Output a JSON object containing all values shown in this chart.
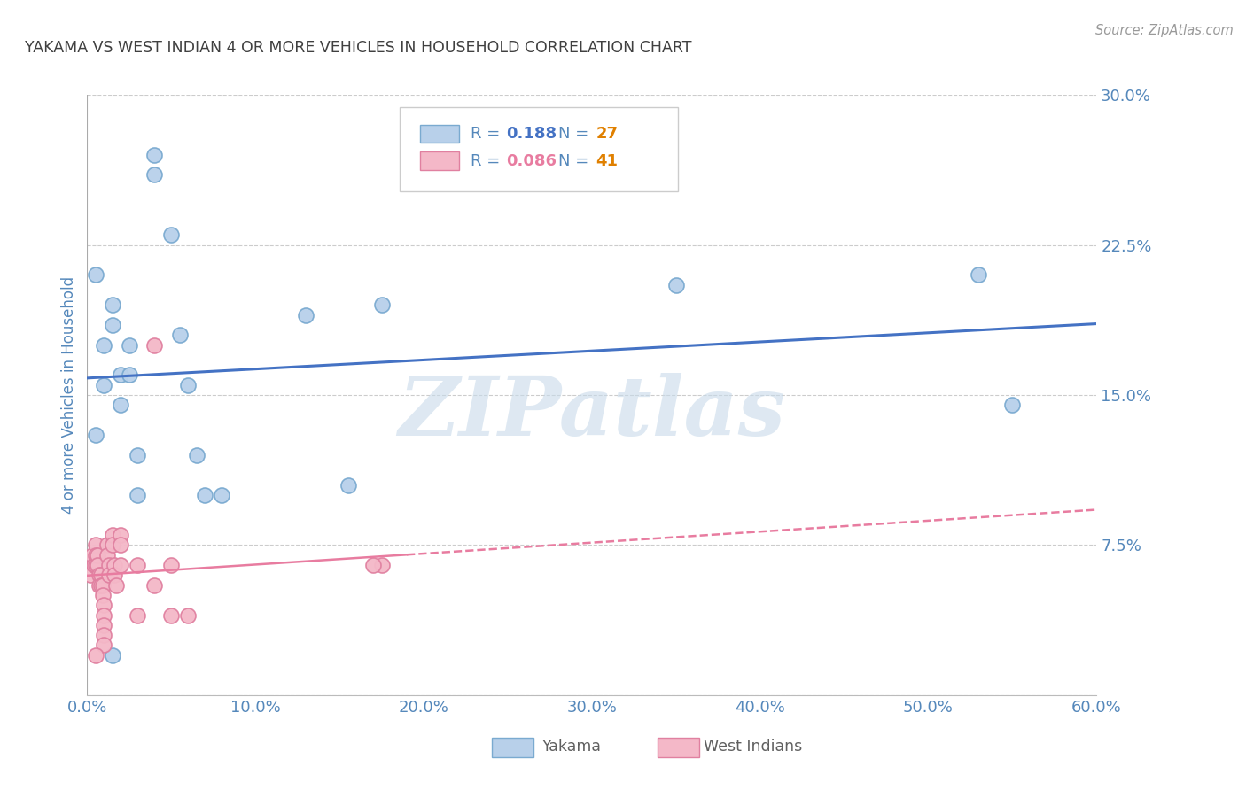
{
  "title": "YAKAMA VS WEST INDIAN 4 OR MORE VEHICLES IN HOUSEHOLD CORRELATION CHART",
  "source": "Source: ZipAtlas.com",
  "ylabel": "4 or more Vehicles in Household",
  "xlim": [
    0.0,
    0.6
  ],
  "ylim": [
    0.0,
    0.3
  ],
  "xticks": [
    0.0,
    0.1,
    0.2,
    0.3,
    0.4,
    0.5,
    0.6
  ],
  "yticks": [
    0.0,
    0.075,
    0.15,
    0.225,
    0.3
  ],
  "ytick_labels": [
    "",
    "7.5%",
    "15.0%",
    "22.5%",
    "30.0%"
  ],
  "xtick_labels": [
    "0.0%",
    "10.0%",
    "20.0%",
    "30.0%",
    "40.0%",
    "50.0%",
    "60.0%"
  ],
  "yakama_x": [
    0.005,
    0.005,
    0.01,
    0.01,
    0.015,
    0.015,
    0.02,
    0.02,
    0.025,
    0.025,
    0.03,
    0.03,
    0.04,
    0.04,
    0.05,
    0.055,
    0.06,
    0.065,
    0.07,
    0.08,
    0.13,
    0.155,
    0.175,
    0.35,
    0.53,
    0.55,
    0.015
  ],
  "yakama_y": [
    0.21,
    0.13,
    0.155,
    0.175,
    0.185,
    0.195,
    0.16,
    0.145,
    0.16,
    0.175,
    0.12,
    0.1,
    0.27,
    0.26,
    0.23,
    0.18,
    0.155,
    0.12,
    0.1,
    0.1,
    0.19,
    0.105,
    0.195,
    0.205,
    0.21,
    0.145,
    0.02
  ],
  "westindian_x": [
    0.002,
    0.003,
    0.004,
    0.005,
    0.005,
    0.005,
    0.006,
    0.006,
    0.007,
    0.007,
    0.008,
    0.008,
    0.009,
    0.009,
    0.01,
    0.01,
    0.01,
    0.01,
    0.01,
    0.012,
    0.012,
    0.013,
    0.013,
    0.015,
    0.015,
    0.016,
    0.016,
    0.017,
    0.02,
    0.02,
    0.02,
    0.03,
    0.03,
    0.04,
    0.04,
    0.05,
    0.05,
    0.06,
    0.175,
    0.17,
    0.005
  ],
  "westindian_y": [
    0.06,
    0.07,
    0.065,
    0.075,
    0.07,
    0.065,
    0.07,
    0.065,
    0.06,
    0.055,
    0.06,
    0.055,
    0.055,
    0.05,
    0.045,
    0.04,
    0.035,
    0.03,
    0.025,
    0.075,
    0.07,
    0.065,
    0.06,
    0.08,
    0.075,
    0.065,
    0.06,
    0.055,
    0.08,
    0.075,
    0.065,
    0.065,
    0.04,
    0.175,
    0.055,
    0.065,
    0.04,
    0.04,
    0.065,
    0.065,
    0.02
  ],
  "blue_line_color": "#4472c4",
  "pink_line_color": "#e87ca0",
  "blue_dot_facecolor": "#b8d0ea",
  "pink_dot_facecolor": "#f4b8c8",
  "blue_dot_edgecolor": "#7aaad0",
  "pink_dot_edgecolor": "#e080a0",
  "watermark_text": "ZIPatlas",
  "watermark_color": "#c8daea",
  "background_color": "#ffffff",
  "grid_color": "#cccccc",
  "title_color": "#404040",
  "tick_label_color": "#5588bb",
  "legend_r1_color": "#4472c4",
  "legend_r2_color": "#e87ca0",
  "legend_n_color": "#e08000",
  "legend_text_color": "#5588bb"
}
